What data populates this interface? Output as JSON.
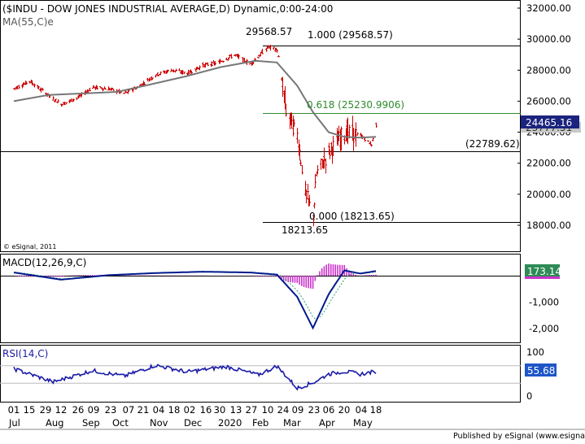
{
  "header": {
    "title": "($INDU - DOW JONES INDUSTRIAL AVERAGE,D) Dynamic,0:00-24:00",
    "ma_label": "MA(55,C)e",
    "watermark": "© eSignal, 2011",
    "footer": "Published by eSignal (www.esignal.com)"
  },
  "colors": {
    "bar": "#cc0000",
    "ma_line": "#777777",
    "fib_mid": "#2e8b2e",
    "macd_line": "#001a8c",
    "signal_line": "#2e9e6e",
    "histogram": "#cc33cc",
    "rsi_line": "#1a1aa8",
    "last_price_badge": "#1a237e",
    "macd_badge": "#2e8b57",
    "rsi_badge": "#1e56c8"
  },
  "chart_data": [
    {
      "type": "bar",
      "panel": "price",
      "title": "($INDU - DOW JONES INDUSTRIAL AVERAGE,D) Dynamic,0:00-24:00",
      "y_ticks": [
        "18000.00",
        "20000.00",
        "22000.00",
        "24000.00",
        "26000.00",
        "28000.00",
        "30000.00",
        "32000.00"
      ],
      "ylim": [
        17000,
        32000
      ],
      "x_ticks": [
        "01",
        "15",
        "29",
        "12",
        "26",
        "09",
        "23",
        "07",
        "21",
        "04",
        "18",
        "02",
        "16",
        "30",
        "13",
        "27",
        "10",
        "24",
        "09",
        "23",
        "06",
        "20",
        "04",
        "18"
      ],
      "x_months": [
        "Jul",
        "Aug",
        "Sep",
        "Oct",
        "Nov",
        "Dec",
        "2020",
        "Feb",
        "Mar",
        "Apr",
        "May"
      ],
      "series": [
        {
          "name": "MA(55,C)e",
          "x": [
            "2019-07-01",
            "2019-08-01",
            "2019-09-01",
            "2019-10-01",
            "2019-11-01",
            "2019-12-01",
            "2020-01-01",
            "2020-02-01",
            "2020-02-20",
            "2020-03-09",
            "2020-03-23",
            "2020-04-06",
            "2020-04-20",
            "2020-05-04",
            "2020-05-18"
          ],
          "values": [
            26000,
            26400,
            26500,
            26600,
            27100,
            27600,
            28200,
            28600,
            28500,
            27000,
            25300,
            24000,
            23700,
            23650,
            23700
          ]
        },
        {
          "name": "Close",
          "x": [
            "2019-07-01",
            "2019-07-15",
            "2019-07-29",
            "2019-08-12",
            "2019-08-26",
            "2019-09-09",
            "2019-09-23",
            "2019-10-07",
            "2019-10-21",
            "2019-11-04",
            "2019-11-18",
            "2019-12-02",
            "2019-12-16",
            "2019-12-30",
            "2020-01-13",
            "2020-01-27",
            "2020-02-12",
            "2020-02-20",
            "2020-02-28",
            "2020-03-09",
            "2020-03-16",
            "2020-03-23",
            "2020-03-26",
            "2020-04-06",
            "2020-04-20",
            "2020-05-04",
            "2020-05-14",
            "2020-05-18"
          ],
          "values": [
            26800,
            27300,
            26500,
            25800,
            26200,
            26900,
            26800,
            26500,
            27000,
            27700,
            28000,
            27800,
            28300,
            28500,
            29000,
            28400,
            29500,
            29300,
            25400,
            23800,
            20200,
            18600,
            21300,
            22700,
            24000,
            23800,
            23200,
            24465
          ]
        }
      ],
      "levels": [
        {
          "label": "1.000 (29568.57)",
          "value": 29568.57
        },
        {
          "label": "0.618 (25230.9906)",
          "value": 25230.9906
        },
        {
          "label": "(22789.62)",
          "value": 22789.62
        },
        {
          "label": "0.000 (18213.65)",
          "value": 18213.65
        }
      ],
      "annotations": [
        {
          "text": "29568.57",
          "value": 29568.57
        },
        {
          "text": "18213.65",
          "value": 18213.65
        }
      ],
      "last_price": "24465.16",
      "ma_last": "23777.51"
    },
    {
      "type": "line",
      "panel": "macd",
      "title": "MACD(12,26,9,C)",
      "y_ticks": [
        "-1,000",
        "-2,000"
      ],
      "ylim": [
        -2400,
        500
      ],
      "last_value": "173.14",
      "series": [
        {
          "name": "MACD",
          "x": [
            "2019-07-01",
            "2019-08-12",
            "2019-09-23",
            "2019-11-04",
            "2019-12-16",
            "2020-01-27",
            "2020-02-20",
            "2020-03-09",
            "2020-03-23",
            "2020-04-06",
            "2020-04-20",
            "2020-05-04",
            "2020-05-18"
          ],
          "values": [
            120,
            -150,
            20,
            100,
            150,
            120,
            40,
            -800,
            -1980,
            -700,
            200,
            80,
            173
          ]
        }
      ]
    },
    {
      "type": "line",
      "panel": "rsi",
      "title": "RSI(14,C)",
      "y_ticks": [
        "100",
        "0"
      ],
      "ylim": [
        -10,
        110
      ],
      "last_value": "55.68",
      "series": [
        {
          "name": "RSI",
          "x": [
            "2019-07-01",
            "2019-08-05",
            "2019-09-09",
            "2019-10-07",
            "2019-11-04",
            "2019-12-02",
            "2020-01-06",
            "2020-02-03",
            "2020-02-20",
            "2020-03-09",
            "2020-03-23",
            "2020-04-06",
            "2020-04-20",
            "2020-05-04",
            "2020-05-18"
          ],
          "values": [
            62,
            32,
            58,
            45,
            70,
            55,
            67,
            48,
            68,
            18,
            30,
            50,
            56,
            50,
            55.68
          ]
        }
      ]
    }
  ]
}
